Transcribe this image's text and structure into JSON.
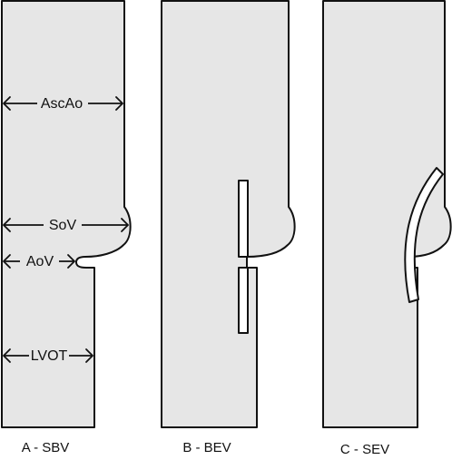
{
  "panels": [
    {
      "id": "A",
      "caption": "A - SBV",
      "labels": {
        "ascending_aorta": "AscAo",
        "sinus_of_valsalva": "SoV",
        "aortic_valve": "AoV",
        "lvot": "LVOT"
      }
    },
    {
      "id": "B",
      "caption": "B - BEV"
    },
    {
      "id": "C",
      "caption": "C - SEV"
    }
  ]
}
